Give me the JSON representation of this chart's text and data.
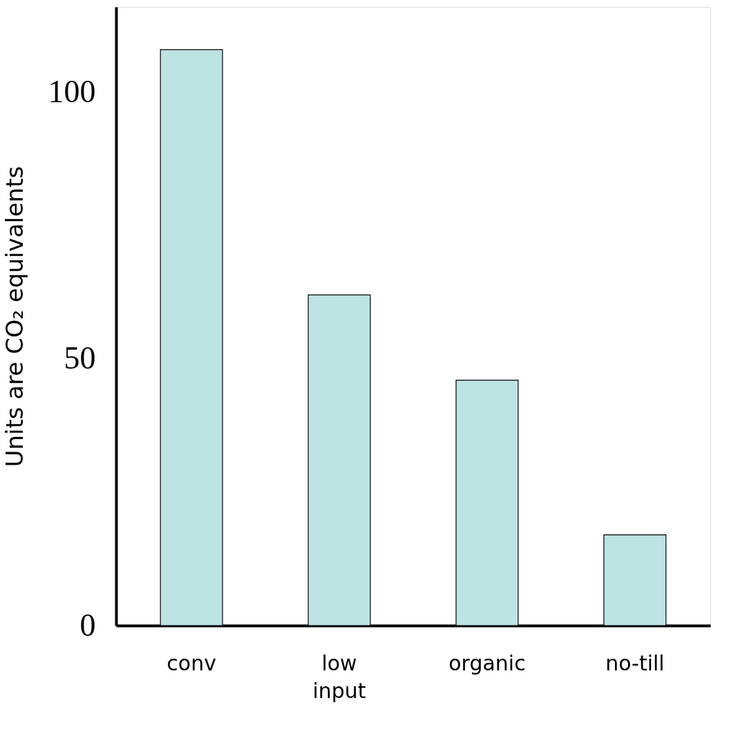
{
  "chart_data": {
    "type": "bar",
    "ylabel": "Units are CO₂ equivalents",
    "categories": [
      "conv",
      "low input",
      "organic",
      "no-till"
    ],
    "values": [
      108,
      62,
      46,
      17
    ],
    "color": "#bde3e3",
    "ylim": [
      0,
      116
    ],
    "yticks": [
      0,
      50,
      100
    ],
    "grid": false
  }
}
